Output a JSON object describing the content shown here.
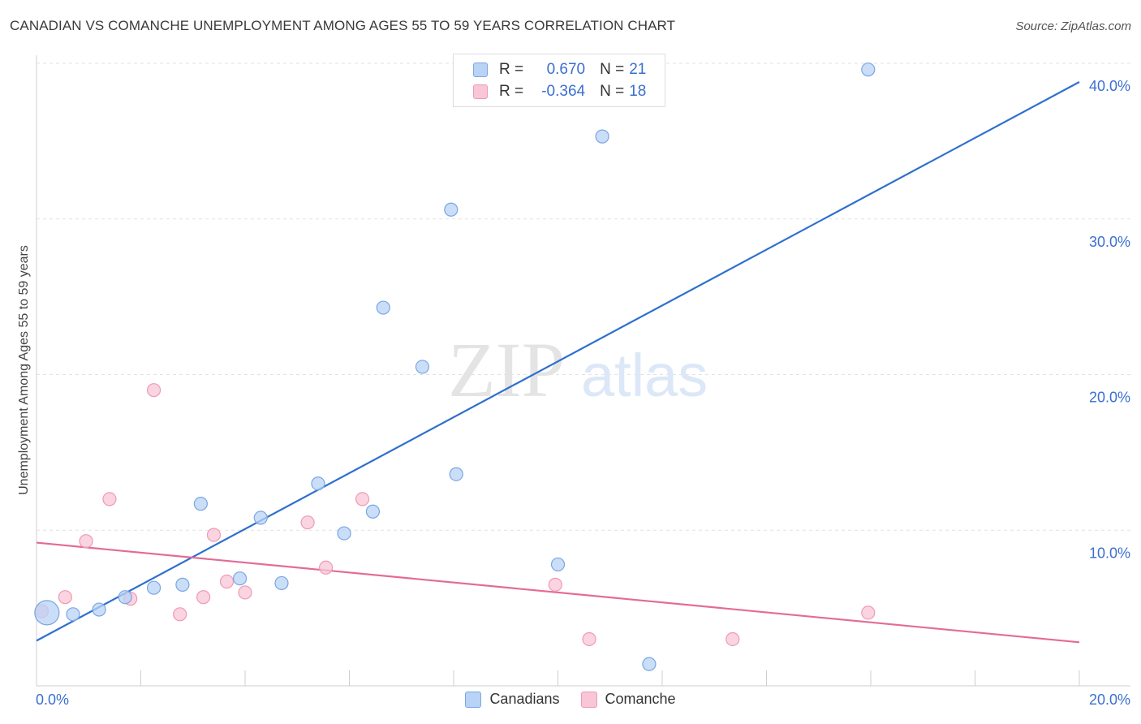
{
  "title": "CANADIAN VS COMANCHE UNEMPLOYMENT AMONG AGES 55 TO 59 YEARS CORRELATION CHART",
  "source": "Source: ZipAtlas.com",
  "watermark": {
    "zip": "ZIP",
    "atlas": "atlas"
  },
  "legend": {
    "rows": [
      {
        "r_label": "R =",
        "r_value": "0.670",
        "n_label": "N =",
        "n_value": "21"
      },
      {
        "r_label": "R =",
        "r_value": "-0.364",
        "n_label": "N =",
        "n_value": "18"
      }
    ]
  },
  "bottom_legend": [
    "Canadians",
    "Comanche"
  ],
  "colors": {
    "canadians_fill": "#b8d3f5",
    "canadians_stroke": "#7aa6e2",
    "canadians_line": "#2f6fce",
    "comanche_fill": "#f8c6d6",
    "comanche_stroke": "#ee9ab4",
    "comanche_line": "#e36b96",
    "tick_text": "#3a6fd0",
    "grid": "#e2e2e2"
  },
  "chart_data": {
    "type": "scatter",
    "title": "CANADIAN VS COMANCHE UNEMPLOYMENT AMONG AGES 55 TO 59 YEARS CORRELATION CHART",
    "xlabel": "",
    "ylabel": "Unemployment Among Ages 55 to 59 years",
    "xlim": [
      0,
      20
    ],
    "ylim": [
      0,
      40
    ],
    "x_tick_labels": [
      "0.0%",
      "20.0%"
    ],
    "y_ticks": [
      10,
      20,
      30,
      40
    ],
    "y_tick_labels": [
      "10.0%",
      "20.0%",
      "30.0%",
      "40.0%"
    ],
    "grid": true,
    "series": [
      {
        "name": "Canadians",
        "R": 0.67,
        "N": 21,
        "points": [
          {
            "x": 0.2,
            "y": 4.7,
            "big": true
          },
          {
            "x": 0.7,
            "y": 4.6
          },
          {
            "x": 1.2,
            "y": 4.9
          },
          {
            "x": 1.7,
            "y": 5.7
          },
          {
            "x": 2.25,
            "y": 6.3
          },
          {
            "x": 2.8,
            "y": 6.5
          },
          {
            "x": 3.15,
            "y": 11.7
          },
          {
            "x": 3.9,
            "y": 6.9
          },
          {
            "x": 4.3,
            "y": 10.8
          },
          {
            "x": 4.7,
            "y": 6.6
          },
          {
            "x": 5.4,
            "y": 13.0
          },
          {
            "x": 5.9,
            "y": 9.8
          },
          {
            "x": 6.45,
            "y": 11.2
          },
          {
            "x": 6.65,
            "y": 24.3
          },
          {
            "x": 7.4,
            "y": 20.5
          },
          {
            "x": 7.95,
            "y": 30.6
          },
          {
            "x": 8.05,
            "y": 13.6
          },
          {
            "x": 10.0,
            "y": 7.8
          },
          {
            "x": 10.85,
            "y": 35.3
          },
          {
            "x": 11.75,
            "y": 1.4
          },
          {
            "x": 15.95,
            "y": 39.6
          }
        ],
        "trend": {
          "x1": 0,
          "y1": 2.9,
          "x2": 20,
          "y2": 38.8
        }
      },
      {
        "name": "Comanche",
        "R": -0.364,
        "N": 18,
        "points": [
          {
            "x": 0.1,
            "y": 4.8
          },
          {
            "x": 0.55,
            "y": 5.7
          },
          {
            "x": 0.95,
            "y": 9.3
          },
          {
            "x": 1.4,
            "y": 12.0
          },
          {
            "x": 1.8,
            "y": 5.6
          },
          {
            "x": 2.25,
            "y": 19.0
          },
          {
            "x": 2.75,
            "y": 4.6
          },
          {
            "x": 3.2,
            "y": 5.7
          },
          {
            "x": 3.4,
            "y": 9.7
          },
          {
            "x": 3.65,
            "y": 6.7
          },
          {
            "x": 4.0,
            "y": 6.0
          },
          {
            "x": 5.2,
            "y": 10.5
          },
          {
            "x": 5.55,
            "y": 7.6
          },
          {
            "x": 6.25,
            "y": 12.0
          },
          {
            "x": 9.95,
            "y": 6.5
          },
          {
            "x": 10.6,
            "y": 3.0
          },
          {
            "x": 13.35,
            "y": 3.0
          },
          {
            "x": 15.95,
            "y": 4.7
          }
        ],
        "trend": {
          "x1": 0,
          "y1": 9.2,
          "x2": 20,
          "y2": 2.8
        }
      }
    ]
  }
}
